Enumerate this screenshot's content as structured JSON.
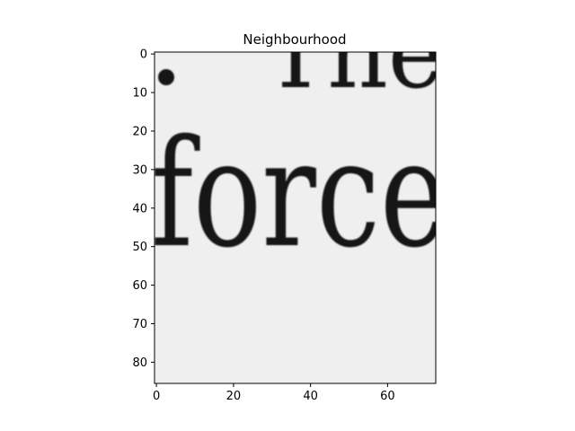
{
  "chart_data": {
    "type": "heatmap",
    "title": "Neighbourhood",
    "content": "grayscale image crop of printed text",
    "colormap": "gray",
    "background_color": "#efefef",
    "ink_color": "#121212",
    "xlim": [
      -0.5,
      72.5
    ],
    "ylim": [
      85.5,
      -0.5
    ],
    "xticks": [
      0,
      20,
      40,
      60
    ],
    "yticks": [
      0,
      10,
      20,
      30,
      40,
      50,
      60,
      70,
      80
    ],
    "xlabel": "",
    "ylabel": "",
    "grid": false
  }
}
